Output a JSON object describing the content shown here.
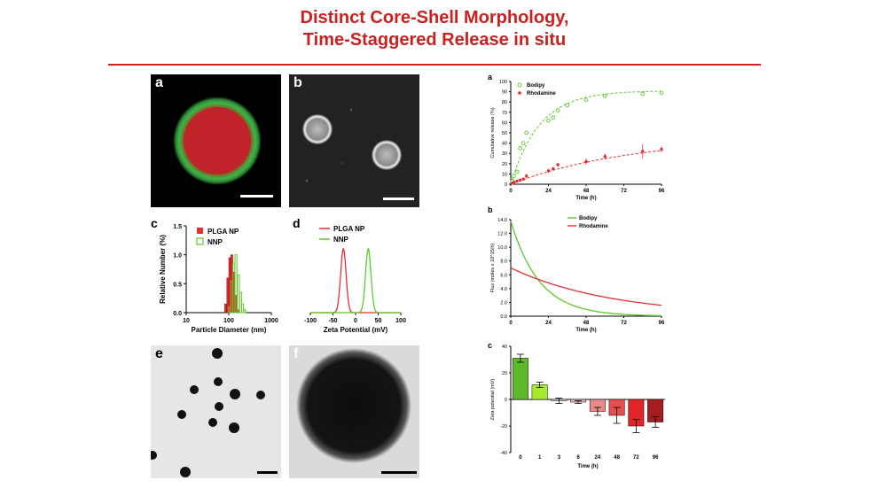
{
  "title_line1": "Distinct Core-Shell Morphology,",
  "title_line2": "Time-Staggered Release in situ",
  "panels_left": {
    "a": "a",
    "b": "b",
    "c": "c",
    "d": "d",
    "e": "e",
    "f": "f"
  },
  "panels_right": {
    "a": "a",
    "b": "b",
    "c": "c"
  },
  "colors": {
    "title": "#cc1f1f",
    "bodipy": "#5cc92a",
    "rhodamine": "#e53030",
    "core_red": "#c0242a",
    "shell_green": "#3db548"
  },
  "chart_data": [
    {
      "id": "c-left",
      "type": "bar",
      "xlabel": "Particle Diameter (nm)",
      "ylabel": "Relative Number (%)",
      "x_scale": "log",
      "xlim": [
        10,
        1000
      ],
      "ylim": [
        0,
        1.5
      ],
      "x_ticks": [
        "10",
        "100",
        "1000"
      ],
      "y_ticks": [
        "0.0",
        "0.5",
        "1.0",
        "1.5"
      ],
      "legend": "top-left",
      "series": [
        {
          "name": "PLGA NP",
          "style": "filled",
          "x": [
            80,
            90,
            100,
            112,
            125,
            140,
            160
          ],
          "values": [
            0.15,
            0.6,
            0.95,
            1.0,
            0.7,
            0.3,
            0.05
          ]
        },
        {
          "name": "NNP",
          "style": "outline",
          "x": [
            100,
            112,
            125,
            140,
            160,
            180,
            200,
            225
          ],
          "values": [
            0.1,
            0.55,
            0.85,
            1.0,
            0.65,
            0.35,
            0.15,
            0.05
          ]
        }
      ]
    },
    {
      "id": "d-left",
      "type": "line",
      "xlabel": "Zeta Potential (mV)",
      "ylabel": "",
      "xlim": [
        -100,
        100
      ],
      "x_ticks": [
        "-100",
        "-50",
        "0",
        "50",
        "100"
      ],
      "legend": "top-right",
      "series": [
        {
          "name": "PLGA NP",
          "peak_mV": -27,
          "width_mV": 6
        },
        {
          "name": "NNP",
          "peak_mV": 28,
          "width_mV": 6
        }
      ]
    },
    {
      "id": "a-right",
      "type": "scatter",
      "xlabel": "Time (h)",
      "ylabel": "Cumulative release (%)",
      "xlim": [
        0,
        96
      ],
      "ylim": [
        0,
        100
      ],
      "x_ticks": [
        "0",
        "24",
        "48",
        "72",
        "96"
      ],
      "y_ticks": [
        "0",
        "10",
        "20",
        "30",
        "40",
        "50",
        "60",
        "70",
        "80",
        "90",
        "100"
      ],
      "legend": "top-left",
      "series": [
        {
          "name": "Bodipy",
          "marker": "open-circle",
          "x": [
            1,
            2,
            4,
            6,
            8,
            10,
            24,
            27,
            30,
            36,
            48,
            60,
            84,
            96
          ],
          "y": [
            3,
            8,
            12,
            35,
            40,
            50,
            62,
            65,
            72,
            77,
            82,
            86,
            88,
            89
          ],
          "fit": {
            "plateau": 91,
            "k": 0.055
          }
        },
        {
          "name": "Rhodamine",
          "marker": "filled-circle",
          "x": [
            1,
            2,
            4,
            6,
            8,
            10,
            24,
            27,
            30,
            48,
            60,
            84,
            96
          ],
          "y": [
            1,
            2,
            3,
            4,
            5,
            8,
            13,
            15,
            19,
            22,
            27,
            32,
            34
          ],
          "err": [
            1,
            1,
            1,
            1,
            1,
            2,
            2,
            2,
            2,
            3,
            3,
            7,
            3
          ],
          "fit": {
            "plateau": 46,
            "k": 0.013
          }
        }
      ]
    },
    {
      "id": "b-right",
      "type": "line",
      "xlabel": "Time (h)",
      "ylabel": "Flux (moles x 10^15/h)",
      "xlim": [
        0,
        96
      ],
      "ylim": [
        0,
        14
      ],
      "x_ticks": [
        "0",
        "24",
        "48",
        "72",
        "96"
      ],
      "y_ticks": [
        "0.0",
        "2.0",
        "4.0",
        "6.0",
        "8.0",
        "10.0",
        "12.0",
        "14.0"
      ],
      "legend": "top-right",
      "series": [
        {
          "name": "Bodipy",
          "y0": 13.8,
          "k": 0.055
        },
        {
          "name": "Rhodamine",
          "y0": 7.0,
          "k": 0.0155
        }
      ]
    },
    {
      "id": "c-right",
      "type": "bar",
      "xlabel": "Time (h)",
      "ylabel": "Zeta potential (mV)",
      "ylim": [
        -40,
        40
      ],
      "categories": [
        "0",
        "1",
        "3",
        "6",
        "24",
        "48",
        "72",
        "96"
      ],
      "y_ticks": [
        "-40",
        "-20",
        "0",
        "20",
        "40"
      ],
      "values": [
        31,
        11,
        -1,
        -2,
        -9,
        -12,
        -20,
        -17
      ],
      "errors": [
        3,
        2,
        2,
        1,
        3,
        6,
        5,
        4
      ],
      "bar_colors": [
        "#5db82a",
        "#a6ea2c",
        "#e8e8e8",
        "#f0b9b3",
        "#e88a88",
        "#e84e4e",
        "#e0252a",
        "#a41d20"
      ]
    }
  ]
}
